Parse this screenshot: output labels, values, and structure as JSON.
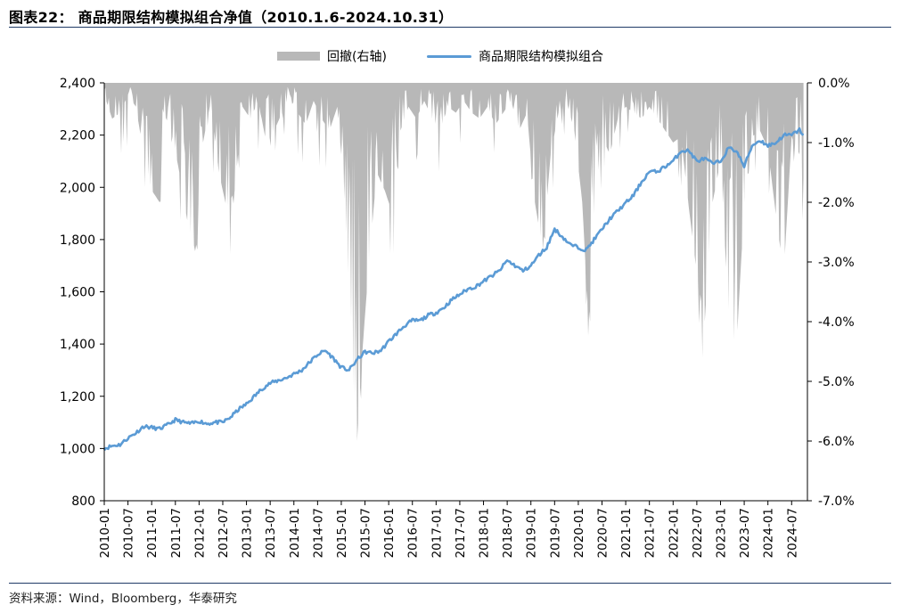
{
  "figure": {
    "title": "图表22：  商品期限结构模拟组合净值（2010.1.6-2024.10.31）",
    "source": "资料来源：Wind，Bloomberg，华泰研究"
  },
  "colors": {
    "line": "#5b9bd5",
    "area": "#b8b8b8",
    "rule": "#1f3a66"
  },
  "chart_data": {
    "type": "line",
    "title": "",
    "xlabel": "",
    "ylabel": "",
    "y2label": "",
    "legend_placement": "top-center",
    "grid": false,
    "ylim": [
      800,
      2400
    ],
    "yticks": [
      "800",
      "1,000",
      "1,200",
      "1,400",
      "1,600",
      "1,800",
      "2,000",
      "2,200",
      "2,400"
    ],
    "y2lim": [
      -7.0,
      0.0
    ],
    "y2ticks": [
      "-7.0%",
      "-6.0%",
      "-5.0%",
      "-4.0%",
      "-3.0%",
      "-2.0%",
      "-1.0%",
      "0.0%"
    ],
    "xlim": [
      "2010-01",
      "2024-10"
    ],
    "xticks": [
      "2010-01",
      "2010-07",
      "2011-01",
      "2011-07",
      "2012-01",
      "2012-07",
      "2013-01",
      "2013-07",
      "2014-01",
      "2014-07",
      "2015-01",
      "2015-07",
      "2016-01",
      "2016-07",
      "2017-01",
      "2017-07",
      "2018-01",
      "2018-07",
      "2019-01",
      "2019-07",
      "2020-01",
      "2020-07",
      "2021-01",
      "2021-07",
      "2022-01",
      "2022-07",
      "2023-01",
      "2023-07",
      "2024-01",
      "2024-07"
    ],
    "series": [
      {
        "name": "回撤(右轴)",
        "type": "area",
        "axis": "right",
        "x": [
          "2010-01",
          "2010-03",
          "2010-05",
          "2010-07",
          "2010-09",
          "2010-11",
          "2011-01",
          "2011-03",
          "2011-04",
          "2011-06",
          "2011-08",
          "2011-10",
          "2011-12",
          "2012-02",
          "2012-04",
          "2012-06",
          "2012-08",
          "2012-10",
          "2012-12",
          "2013-02",
          "2013-04",
          "2013-06",
          "2013-08",
          "2013-10",
          "2013-12",
          "2014-02",
          "2014-04",
          "2014-06",
          "2014-08",
          "2014-10",
          "2014-12",
          "2015-01",
          "2015-02",
          "2015-03",
          "2015-04",
          "2015-05",
          "2015-06",
          "2015-08",
          "2015-10",
          "2015-12",
          "2016-02",
          "2016-04",
          "2016-06",
          "2016-08",
          "2016-10",
          "2016-12",
          "2017-02",
          "2017-04",
          "2017-06",
          "2017-08",
          "2017-10",
          "2017-12",
          "2018-02",
          "2018-04",
          "2018-06",
          "2018-08",
          "2018-10",
          "2018-12",
          "2019-02",
          "2019-04",
          "2019-06",
          "2019-08",
          "2019-10",
          "2019-12",
          "2020-02",
          "2020-03",
          "2020-04",
          "2020-05",
          "2020-07",
          "2020-09",
          "2020-11",
          "2021-01",
          "2021-03",
          "2021-05",
          "2021-07",
          "2021-09",
          "2021-11",
          "2022-01",
          "2022-03",
          "2022-05",
          "2022-07",
          "2022-09",
          "2022-11",
          "2023-01",
          "2023-03",
          "2023-05",
          "2023-07",
          "2023-09",
          "2023-11",
          "2024-01",
          "2024-03",
          "2024-05",
          "2024-07",
          "2024-09",
          "2024-10"
        ],
        "values": [
          -0.2,
          -0.6,
          -0.5,
          -0.2,
          -0.4,
          -1.2,
          -1.8,
          -2.0,
          -0.5,
          -0.8,
          -1.5,
          -2.3,
          -2.8,
          -1.0,
          -0.3,
          -1.5,
          -2.1,
          -1.8,
          -0.4,
          -0.6,
          -0.3,
          -1.0,
          -0.8,
          -0.5,
          -0.2,
          -0.5,
          -0.7,
          -0.3,
          -0.6,
          -0.8,
          -0.4,
          -1.2,
          -2.2,
          -3.5,
          -4.5,
          -6.0,
          -4.8,
          -3.0,
          -1.5,
          -1.8,
          -2.2,
          -0.8,
          -0.4,
          -0.6,
          -0.3,
          -0.6,
          -0.8,
          -0.4,
          -0.5,
          -0.3,
          -0.5,
          -0.6,
          -0.4,
          -0.7,
          -0.5,
          -0.3,
          -0.8,
          -0.5,
          -2.0,
          -2.8,
          -1.2,
          -0.5,
          -0.3,
          -0.8,
          -2.0,
          -3.3,
          -4.0,
          -2.2,
          -0.9,
          -1.2,
          -0.6,
          -0.4,
          -0.5,
          -0.6,
          -0.4,
          -0.6,
          -0.8,
          -1.0,
          -0.9,
          -2.1,
          -3.2,
          -4.0,
          -2.0,
          -1.3,
          -3.8,
          -4.5,
          -2.0,
          -0.9,
          -0.8,
          -1.1,
          -2.2,
          -3.2,
          -0.9,
          -1.2,
          -1.6
        ]
      },
      {
        "name": "商品期限结构模拟组合",
        "type": "line",
        "axis": "left",
        "x": [
          "2010-01",
          "2010-03",
          "2010-05",
          "2010-07",
          "2010-09",
          "2010-11",
          "2011-01",
          "2011-03",
          "2011-05",
          "2011-07",
          "2011-09",
          "2011-11",
          "2012-01",
          "2012-03",
          "2012-05",
          "2012-07",
          "2012-09",
          "2012-11",
          "2013-01",
          "2013-03",
          "2013-05",
          "2013-07",
          "2013-09",
          "2013-11",
          "2014-01",
          "2014-03",
          "2014-05",
          "2014-07",
          "2014-09",
          "2014-11",
          "2015-01",
          "2015-03",
          "2015-05",
          "2015-07",
          "2015-09",
          "2015-11",
          "2016-01",
          "2016-03",
          "2016-05",
          "2016-07",
          "2016-09",
          "2016-11",
          "2017-01",
          "2017-03",
          "2017-05",
          "2017-07",
          "2017-09",
          "2017-11",
          "2018-01",
          "2018-03",
          "2018-05",
          "2018-07",
          "2018-09",
          "2018-11",
          "2019-01",
          "2019-03",
          "2019-05",
          "2019-07",
          "2019-09",
          "2019-11",
          "2020-01",
          "2020-03",
          "2020-05",
          "2020-07",
          "2020-09",
          "2020-11",
          "2021-01",
          "2021-03",
          "2021-05",
          "2021-07",
          "2021-09",
          "2021-11",
          "2022-01",
          "2022-03",
          "2022-05",
          "2022-07",
          "2022-09",
          "2022-11",
          "2023-01",
          "2023-03",
          "2023-05",
          "2023-07",
          "2023-09",
          "2023-11",
          "2024-01",
          "2024-03",
          "2024-05",
          "2024-07",
          "2024-09",
          "2024-10"
        ],
        "values": [
          1000,
          1010,
          1015,
          1040,
          1060,
          1085,
          1080,
          1075,
          1090,
          1110,
          1100,
          1095,
          1105,
          1095,
          1100,
          1100,
          1120,
          1150,
          1170,
          1200,
          1230,
          1250,
          1260,
          1270,
          1285,
          1300,
          1330,
          1360,
          1375,
          1345,
          1310,
          1300,
          1340,
          1370,
          1365,
          1375,
          1410,
          1440,
          1470,
          1490,
          1490,
          1510,
          1520,
          1540,
          1570,
          1590,
          1610,
          1620,
          1640,
          1660,
          1680,
          1720,
          1700,
          1680,
          1700,
          1740,
          1770,
          1840,
          1810,
          1780,
          1770,
          1760,
          1800,
          1840,
          1880,
          1910,
          1940,
          1970,
          2020,
          2060,
          2060,
          2080,
          2100,
          2140,
          2140,
          2100,
          2110,
          2090,
          2100,
          2150,
          2140,
          2080,
          2160,
          2180,
          2160,
          2170,
          2200,
          2200,
          2220,
          2200
        ]
      }
    ]
  }
}
